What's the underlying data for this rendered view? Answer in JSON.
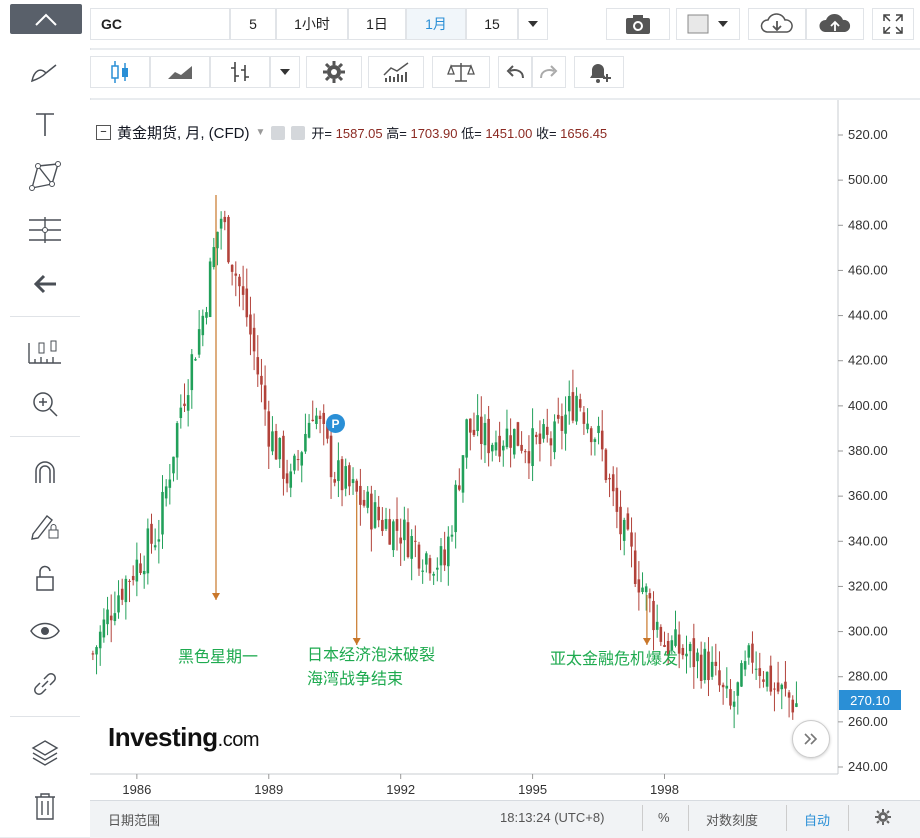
{
  "toolbar": {
    "symbol": "GC",
    "intervals": [
      "5",
      "1小时",
      "1日",
      "1月",
      "15"
    ],
    "active_interval": "1月"
  },
  "legend": {
    "title": "黄金期货, 月, (CFD)",
    "open_label": "开=",
    "open": "1587.05",
    "high_label": "高=",
    "high": "1703.90",
    "low_label": "低=",
    "low": "1451.00",
    "close_label": "收=",
    "close": "1656.45"
  },
  "watermark": {
    "brand": "Investing",
    "suffix": ".com"
  },
  "marker_label": "P",
  "price_label": "270.10",
  "bottom": {
    "range_label": "日期范围",
    "clock": "18:13:24 (UTC+8)",
    "percent": "%",
    "log_scale": "对数刻度",
    "auto": "自动"
  },
  "colors": {
    "up": "#21a05a",
    "down": "#b2423a",
    "accent": "#2a8fd6",
    "annotation": "#c9772a",
    "annotation_text": "#1eaa4f"
  },
  "chart_data": {
    "type": "candlestick",
    "title": "黄金期货, 月, (CFD)",
    "x_ticks": [
      "1986",
      "1989",
      "1992",
      "1995",
      "1998"
    ],
    "ylim": [
      240,
      520
    ],
    "y_ticks": [
      "240.00",
      "260.00",
      "280.00",
      "300.00",
      "320.00",
      "340.00",
      "360.00",
      "380.00",
      "400.00",
      "420.00",
      "440.00",
      "460.00",
      "480.00",
      "500.00",
      "520.00"
    ],
    "last_price": 270.1,
    "series": [
      {
        "name": "close",
        "x": [
          1985.0,
          1985.5,
          1986.0,
          1986.5,
          1987.0,
          1987.5,
          1987.9,
          1988.5,
          1989.0,
          1989.5,
          1990.0,
          1990.5,
          1991.0,
          1991.5,
          1992.0,
          1992.5,
          1993.0,
          1993.5,
          1994.0,
          1994.5,
          1995.0,
          1995.5,
          1996.0,
          1996.5,
          1997.0,
          1997.5,
          1998.0,
          1998.5,
          1999.0,
          1999.5,
          2000.0,
          2000.5,
          2001.0
        ],
        "values": [
          290,
          315,
          330,
          345,
          400,
          440,
          485,
          440,
          390,
          365,
          400,
          370,
          360,
          350,
          345,
          335,
          330,
          390,
          385,
          388,
          382,
          385,
          405,
          385,
          345,
          320,
          295,
          290,
          285,
          265,
          290,
          275,
          268
        ]
      }
    ],
    "annotations": [
      {
        "label": "黑色星期一",
        "x": 1987.8
      },
      {
        "label": "日本经济泡沫破裂",
        "x": 1991.0
      },
      {
        "label": "海湾战争结束",
        "x": 1991.0
      },
      {
        "label": "亚太金融危机爆发",
        "x": 1997.6
      }
    ],
    "legend": "none",
    "grid": false
  }
}
